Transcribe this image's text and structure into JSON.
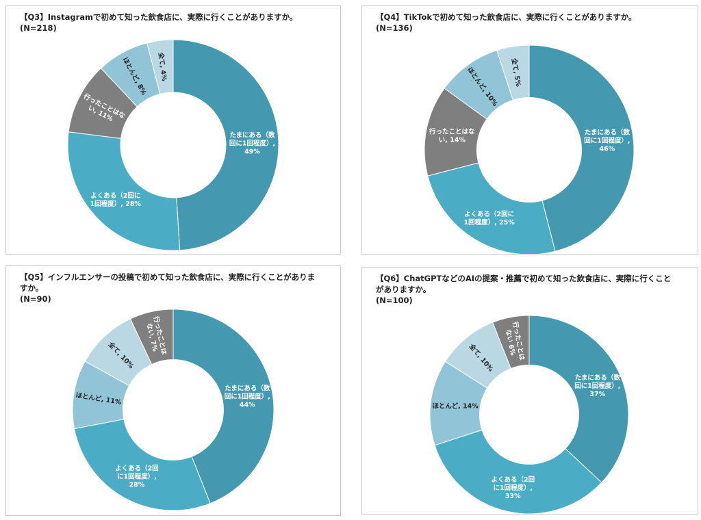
{
  "chart_data": [
    {
      "type": "pie",
      "donut": true,
      "title": "【Q3】Instagramで初めて知った飲食店に、実際に行くことがありますか。",
      "n_label": "(N=218)",
      "slices": [
        {
          "label": "たまにある（数回に1回程度）",
          "value": 49,
          "color": "#4499b1",
          "text": "たまにある（数|回に1回程度）,|49%"
        },
        {
          "label": "よくある（2回に1回程度）",
          "value": 28,
          "color": "#4bacc6",
          "text": "よくある（2回に|1回程度）, 28%"
        },
        {
          "label": "行ったことはない",
          "value": 11,
          "color": "#7f7f7f",
          "text": "行ったことはな|い, 11%"
        },
        {
          "label": "ほとんど",
          "value": 8,
          "color": "#92c4d7",
          "text": "ほとんど, 8%"
        },
        {
          "label": "全て",
          "value": 4,
          "color": "#b9d8e4",
          "text": "全て, 4%"
        }
      ]
    },
    {
      "type": "pie",
      "donut": true,
      "title": "【Q4】TikTokで初めて知った飲食店に、実際に行くことがありますか。",
      "n_label": "(N=136)",
      "slices": [
        {
          "label": "たまにある（数回に1回程度）",
          "value": 46,
          "color": "#4499b1",
          "text": "たまにある（数|回に1回程度）,|46%"
        },
        {
          "label": "よくある（2回に1回程度）",
          "value": 25,
          "color": "#4bacc6",
          "text": "よくある（2回に|1回程度）, 25%"
        },
        {
          "label": "行ったことはない",
          "value": 14,
          "color": "#7f7f7f",
          "text": "行ったことはな|い, 14%"
        },
        {
          "label": "ほとんど",
          "value": 10,
          "color": "#92c4d7",
          "text": "ほとんど, 10%"
        },
        {
          "label": "全て",
          "value": 5,
          "color": "#b9d8e4",
          "text": "全て, 5%"
        }
      ]
    },
    {
      "type": "pie",
      "donut": true,
      "title": "【Q5】インフルエンサーの投稿で初めて知った飲食店に、実際に行くことがありますか。",
      "n_label": "(N=90)",
      "slices": [
        {
          "label": "たまにある（数回に1回程度）",
          "value": 44,
          "color": "#4499b1",
          "text": "たまにある（数|回に1回程度）,|44%"
        },
        {
          "label": "よくある（2回に1回程度）",
          "value": 28,
          "color": "#4bacc6",
          "text": "よくある（2回|に1回程度）,|28%"
        },
        {
          "label": "ほとんど",
          "value": 11,
          "color": "#92c4d7",
          "text": "ほとんど, 11%"
        },
        {
          "label": "全て",
          "value": 10,
          "color": "#b9d8e4",
          "text": "全て, 10%"
        },
        {
          "label": "行ったことはない",
          "value": 7,
          "color": "#7f7f7f",
          "text": "行ったことは|ない, 7%"
        }
      ]
    },
    {
      "type": "pie",
      "donut": true,
      "title": "【Q6】ChatGPTなどのAIの提案・推薦で初めて知った飲食店に、実際に行くことがありますか。",
      "n_label": "(N=100)",
      "slices": [
        {
          "label": "たまにある（数回に1回程度）",
          "value": 37,
          "color": "#4499b1",
          "text": "たまにある（数|回に1回程度）,|37%"
        },
        {
          "label": "よくある（2回に1回程度）",
          "value": 33,
          "color": "#4bacc6",
          "text": "よくある（2回|に1回程度）,|33%"
        },
        {
          "label": "ほとんど",
          "value": 14,
          "color": "#92c4d7",
          "text": "ほとんど, 14%"
        },
        {
          "label": "全て",
          "value": 10,
          "color": "#b9d8e4",
          "text": "全て, 10%"
        },
        {
          "label": "行ったことはない",
          "value": 6,
          "color": "#7f7f7f",
          "text": "行ったことは|ない 6%"
        }
      ]
    }
  ]
}
